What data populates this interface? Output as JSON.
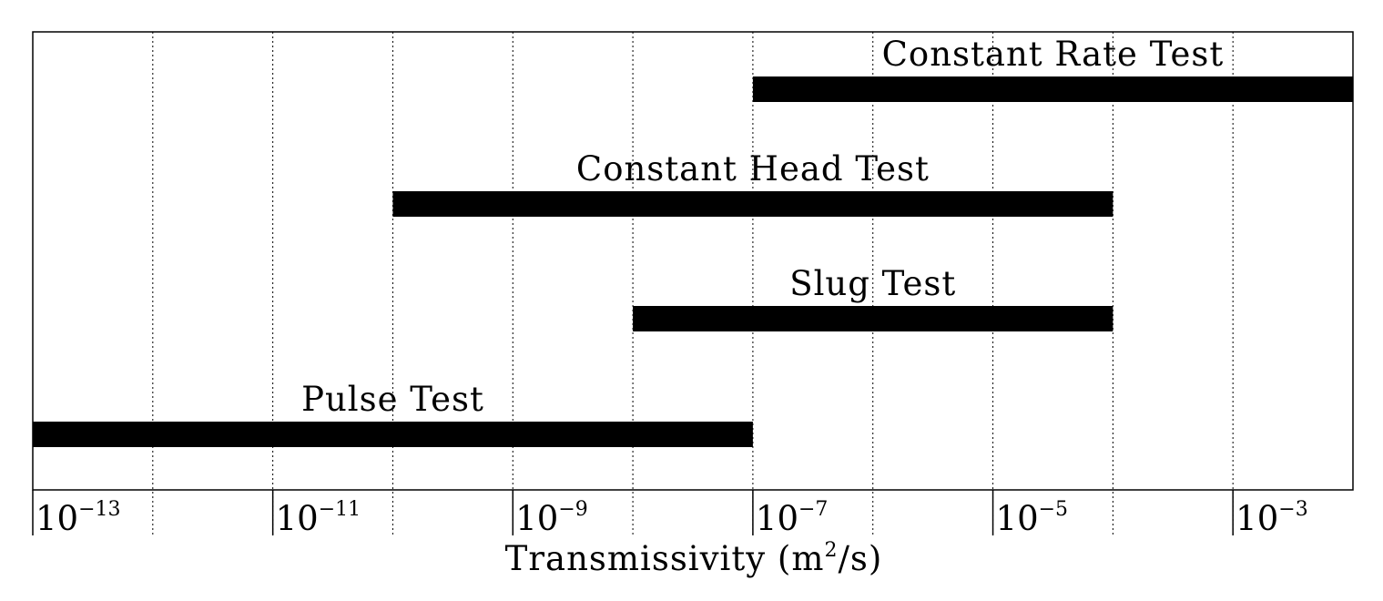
{
  "chart_data": {
    "type": "bar",
    "orientation": "horizontal",
    "x_scale": "log10",
    "xlim": [
      1e-13,
      0.01
    ],
    "grid": true,
    "xlabel_prefix": "Transmissivity (m",
    "xlabel_sup": "2",
    "xlabel_suffix": "/s)",
    "ticks": [
      {
        "value": 1e-13,
        "base": "10",
        "exp": "-13"
      },
      {
        "value": 1e-11,
        "base": "10",
        "exp": "-11"
      },
      {
        "value": 1e-09,
        "base": "10",
        "exp": "-9"
      },
      {
        "value": 1e-07,
        "base": "10",
        "exp": "-7"
      },
      {
        "value": 1e-05,
        "base": "10",
        "exp": "-5"
      },
      {
        "value": 0.001,
        "base": "10",
        "exp": "-3"
      }
    ],
    "series": [
      {
        "label": "Constant Rate Test",
        "x_start": 1e-07,
        "x_end": 0.01
      },
      {
        "label": "Constant Head Test",
        "x_start": 1e-10,
        "x_end": 0.0001
      },
      {
        "label": "Slug Test",
        "x_start": 1e-08,
        "x_end": 0.0001
      },
      {
        "label": "Pulse Test",
        "x_start": 1e-13,
        "x_end": 1e-07
      }
    ]
  }
}
